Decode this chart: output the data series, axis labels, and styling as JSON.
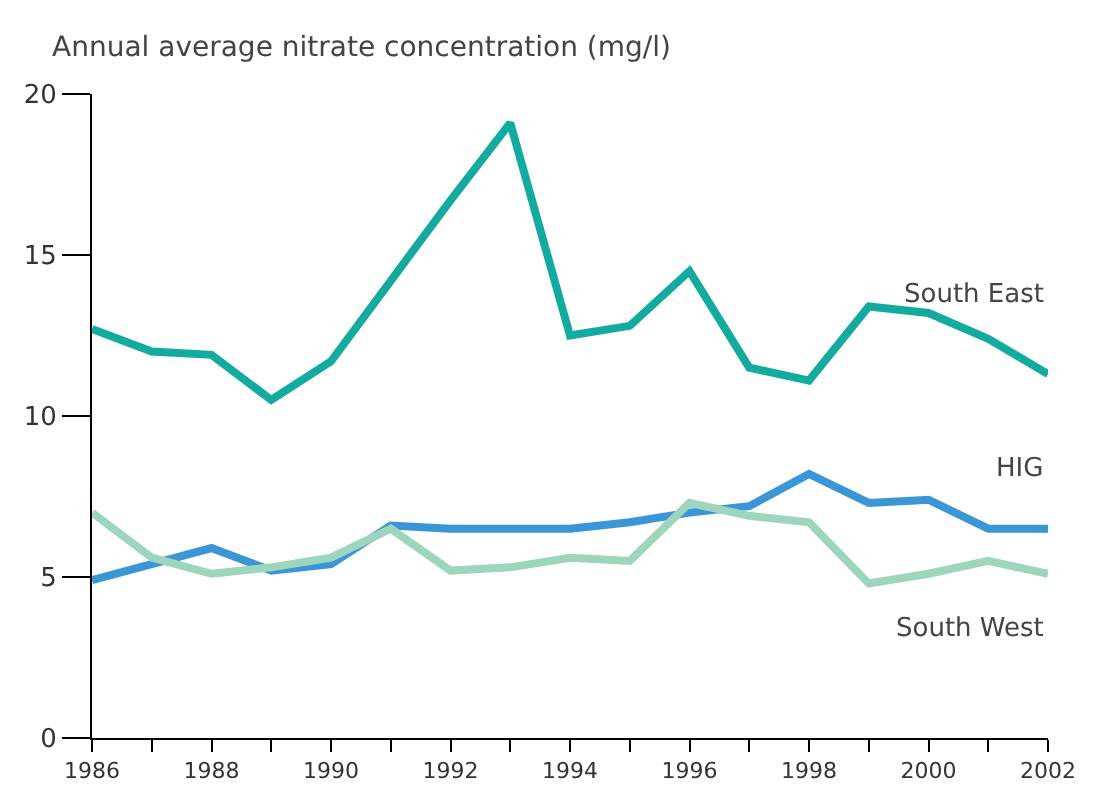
{
  "chart_data": {
    "type": "line",
    "ylabel": "Annual average nitrate concentration (mg/l)",
    "x": [
      1986,
      1987,
      1988,
      1989,
      1990,
      1991,
      1992,
      1993,
      1994,
      1995,
      1996,
      1997,
      1998,
      1999,
      2000,
      2001,
      2002
    ],
    "series": [
      {
        "name": "South East",
        "color": "#13aba0",
        "values": [
          12.7,
          12.0,
          11.9,
          10.5,
          11.7,
          14.2,
          16.7,
          19.1,
          12.5,
          12.8,
          14.5,
          11.5,
          11.1,
          13.4,
          13.2,
          12.4,
          11.3
        ]
      },
      {
        "name": "HIG",
        "color": "#3a96d6",
        "values": [
          4.9,
          5.4,
          5.9,
          5.2,
          5.4,
          6.6,
          6.5,
          6.5,
          6.5,
          6.7,
          7.0,
          7.2,
          8.2,
          7.3,
          7.4,
          6.5,
          6.5
        ]
      },
      {
        "name": "South West",
        "color": "#9dd6bd",
        "values": [
          7.0,
          5.6,
          5.1,
          5.3,
          5.6,
          6.5,
          5.2,
          5.3,
          5.6,
          5.5,
          7.3,
          6.9,
          6.7,
          4.8,
          5.1,
          5.5,
          5.1
        ]
      }
    ],
    "xlim": [
      1986,
      2002
    ],
    "xticks": [
      1986,
      {
        "value": 1987,
        "label": null
      },
      1988,
      {
        "value": 1989,
        "label": null
      },
      1990,
      {
        "value": 1991,
        "label": null
      },
      1992,
      {
        "value": 1993,
        "label": null
      },
      1994,
      {
        "value": 1995,
        "label": null
      },
      1996,
      {
        "value": 1997,
        "label": null
      },
      1998,
      {
        "value": 1999,
        "label": null
      },
      2000,
      {
        "value": 2001,
        "label": null
      },
      2002
    ],
    "ylim": [
      0,
      20
    ],
    "yticks": [
      0,
      5,
      10,
      15,
      20
    ],
    "legend": false,
    "marker": "none",
    "line_style": "solid"
  }
}
